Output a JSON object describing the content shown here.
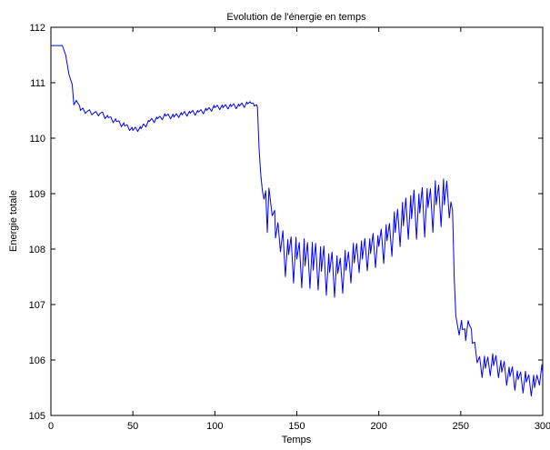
{
  "chart_data": {
    "type": "line",
    "title": "Evolution de l'énergie en temps",
    "xlabel": "Temps",
    "ylabel": "Energie totale",
    "xlim": [
      0,
      300
    ],
    "ylim": [
      105,
      112
    ],
    "xticks": [
      0,
      50,
      100,
      150,
      200,
      250,
      300
    ],
    "yticks": [
      105,
      106,
      107,
      108,
      109,
      110,
      111,
      112
    ],
    "grid": false,
    "legend": "none",
    "series": [
      {
        "color": "#0000ff",
        "x": [
          0,
          7,
          9,
          11,
          13,
          14,
          16,
          18,
          22,
          26,
          30,
          35,
          40,
          45,
          50,
          55,
          60,
          65,
          70,
          75,
          80,
          85,
          90,
          95,
          100,
          105,
          110,
          115,
          120,
          122,
          124,
          126,
          127,
          128,
          129,
          130,
          131,
          132,
          133,
          135,
          137,
          140,
          145,
          150,
          155,
          160,
          165,
          170,
          175,
          180,
          185,
          190,
          195,
          200,
          205,
          210,
          215,
          220,
          225,
          230,
          235,
          240,
          244,
          245,
          246,
          247,
          249,
          251,
          253,
          255,
          257,
          260,
          265,
          270,
          275,
          280,
          285,
          290,
          295,
          298,
          300
        ],
        "y": [
          111.67,
          111.67,
          111.5,
          111.15,
          110.97,
          110.6,
          110.65,
          110.5,
          110.48,
          110.45,
          110.45,
          110.37,
          110.3,
          110.22,
          110.14,
          110.17,
          110.3,
          110.35,
          110.4,
          110.38,
          110.42,
          110.45,
          110.47,
          110.5,
          110.55,
          110.55,
          110.57,
          110.58,
          110.62,
          110.63,
          110.58,
          110.55,
          109.8,
          109.35,
          109.05,
          108.9,
          109.05,
          108.3,
          109.1,
          108.6,
          108.2,
          107.95,
          107.9,
          107.82,
          107.7,
          107.62,
          107.6,
          107.58,
          107.56,
          107.62,
          107.75,
          107.82,
          107.92,
          108.05,
          108.15,
          108.3,
          108.42,
          108.55,
          108.65,
          108.75,
          108.8,
          108.8,
          108.85,
          108.7,
          107.5,
          106.8,
          106.45,
          106.55,
          106.35,
          106.65,
          106.3,
          105.95,
          105.85,
          105.9,
          105.78,
          105.7,
          105.65,
          105.6,
          105.5,
          105.55,
          105.75
        ]
      }
    ]
  }
}
